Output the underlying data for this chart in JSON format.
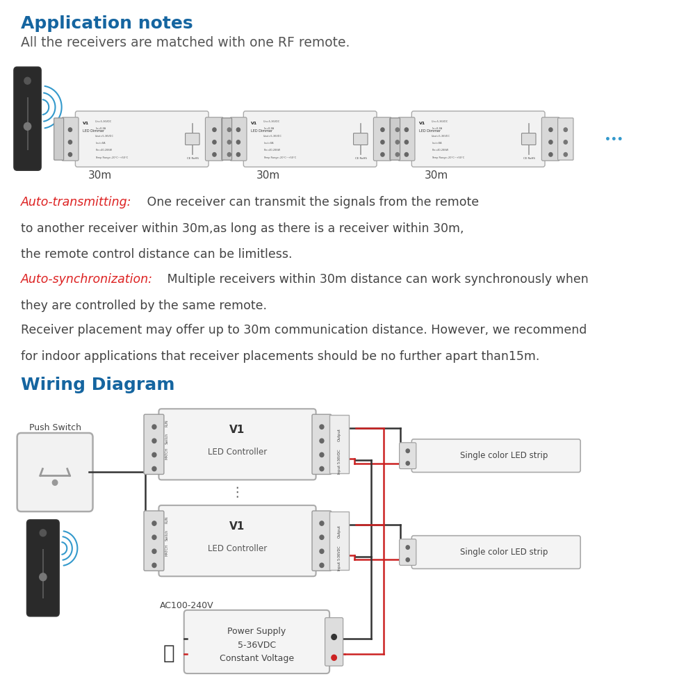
{
  "bg_color": "#ffffff",
  "title1": "Application notes",
  "title1_color": "#1565a0",
  "subtitle": "All the receivers are matched with one RF remote.",
  "subtitle_color": "#555555",
  "auto_transmitting_label": "Auto-transmitting:",
  "auto_transmitting_rest": " One receiver can transmit the signals from the remote",
  "auto_transmitting_line2": "to another receiver within 30m,as long as there is a receiver within 30m,",
  "auto_transmitting_line3": "the remote control distance can be limitless.",
  "auto_sync_label": "Auto-synchronization:",
  "auto_sync_rest": " Multiple receivers within 30m distance can work synchronously when",
  "auto_sync_line2": "they are controlled by the same remote.",
  "receiver_line1": "Receiver placement may offer up to 30m communication distance. However, we recommend",
  "receiver_line2": "for indoor applications that receiver placements should be no further apart than15m.",
  "red_color": "#dd2222",
  "dark_color": "#444444",
  "gray_color": "#666666",
  "title2": "Wiring Diagram",
  "title2_color": "#1565a0",
  "distance_label": "30m",
  "blue_color": "#3399cc",
  "single_color_strip": "Single color LED strip",
  "power_supply_line1": "Power Supply",
  "power_supply_line2": "5-36VDC",
  "power_supply_line3": "Constant Voltage",
  "push_switch_label": "Push Switch",
  "ac_label": "AC100-240V"
}
